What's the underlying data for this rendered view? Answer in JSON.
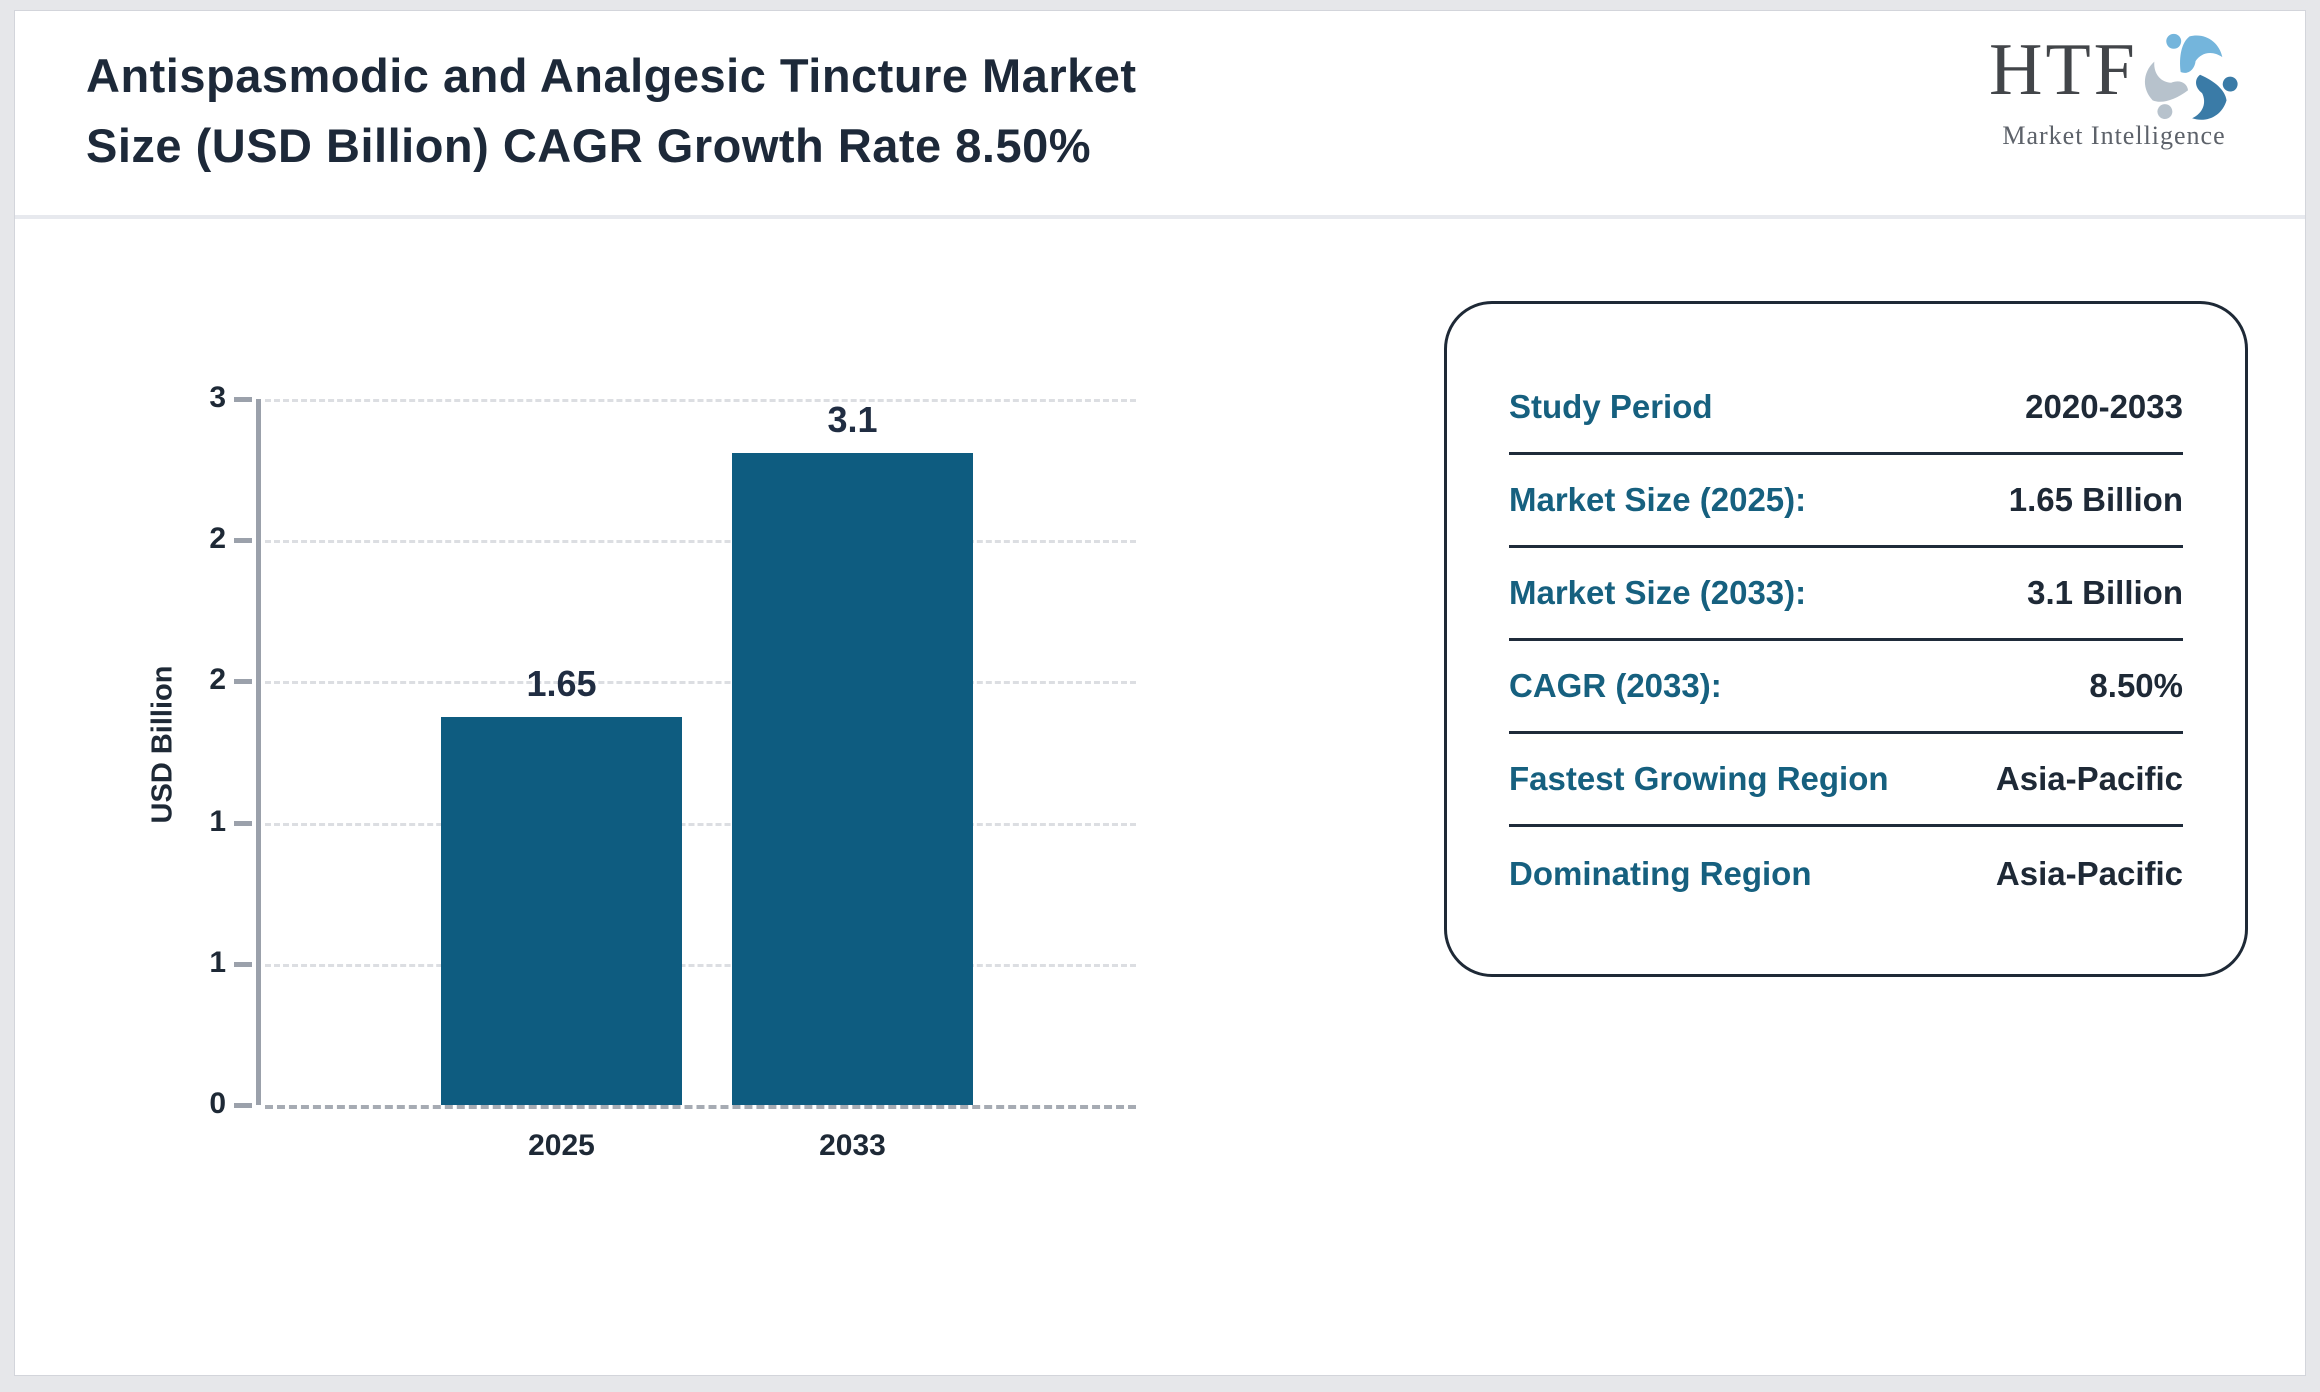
{
  "header": {
    "title_lines": [
      "Antispasmodic and Analgesic Tincture Market",
      "Size (USD Billion) CAGR Growth Rate 8.50%"
    ],
    "logo": {
      "name": "HTF",
      "subtitle": "Market Intelligence"
    }
  },
  "chart_data": {
    "type": "bar",
    "title": "Antispasmodic and Analgesic Tincture Market Size (USD Billion) CAGR Growth Rate 8.50%",
    "categories": [
      "2025",
      "2033"
    ],
    "values": [
      1.65,
      3.1
    ],
    "value_labels": [
      "1.65",
      "3.1"
    ],
    "xlabel": "",
    "ylabel": "USD Billion",
    "ylim": [
      0,
      3
    ],
    "ytick_labels_top_to_bottom": [
      "3",
      "2",
      "2",
      "1",
      "1",
      "0"
    ],
    "grid": "horizontal-dashed",
    "legend": "none",
    "bar_color": "#0e5c80"
  },
  "info_card": {
    "rows": [
      {
        "label": "Study Period",
        "value": "2020-2033"
      },
      {
        "label": "Market Size (2025):",
        "value": "1.65 Billion"
      },
      {
        "label": "Market Size (2033):",
        "value": "3.1 Billion"
      },
      {
        "label": "CAGR (2033):",
        "value": "8.50%"
      },
      {
        "label": "Fastest Growing Region",
        "value": "Asia-Pacific"
      },
      {
        "label": "Dominating Region",
        "value": "Asia-Pacific"
      }
    ]
  },
  "colors": {
    "bar": "#0e5c80",
    "label_teal": "#16607f",
    "dark_navy": "#1e2936",
    "axis_gray": "#9ba1ab",
    "page_background": "#e6e7ea",
    "logo_light_blue": "#74b5dc",
    "logo_dark_blue": "#3a7ba7",
    "logo_gray": "#b7c2cc"
  }
}
